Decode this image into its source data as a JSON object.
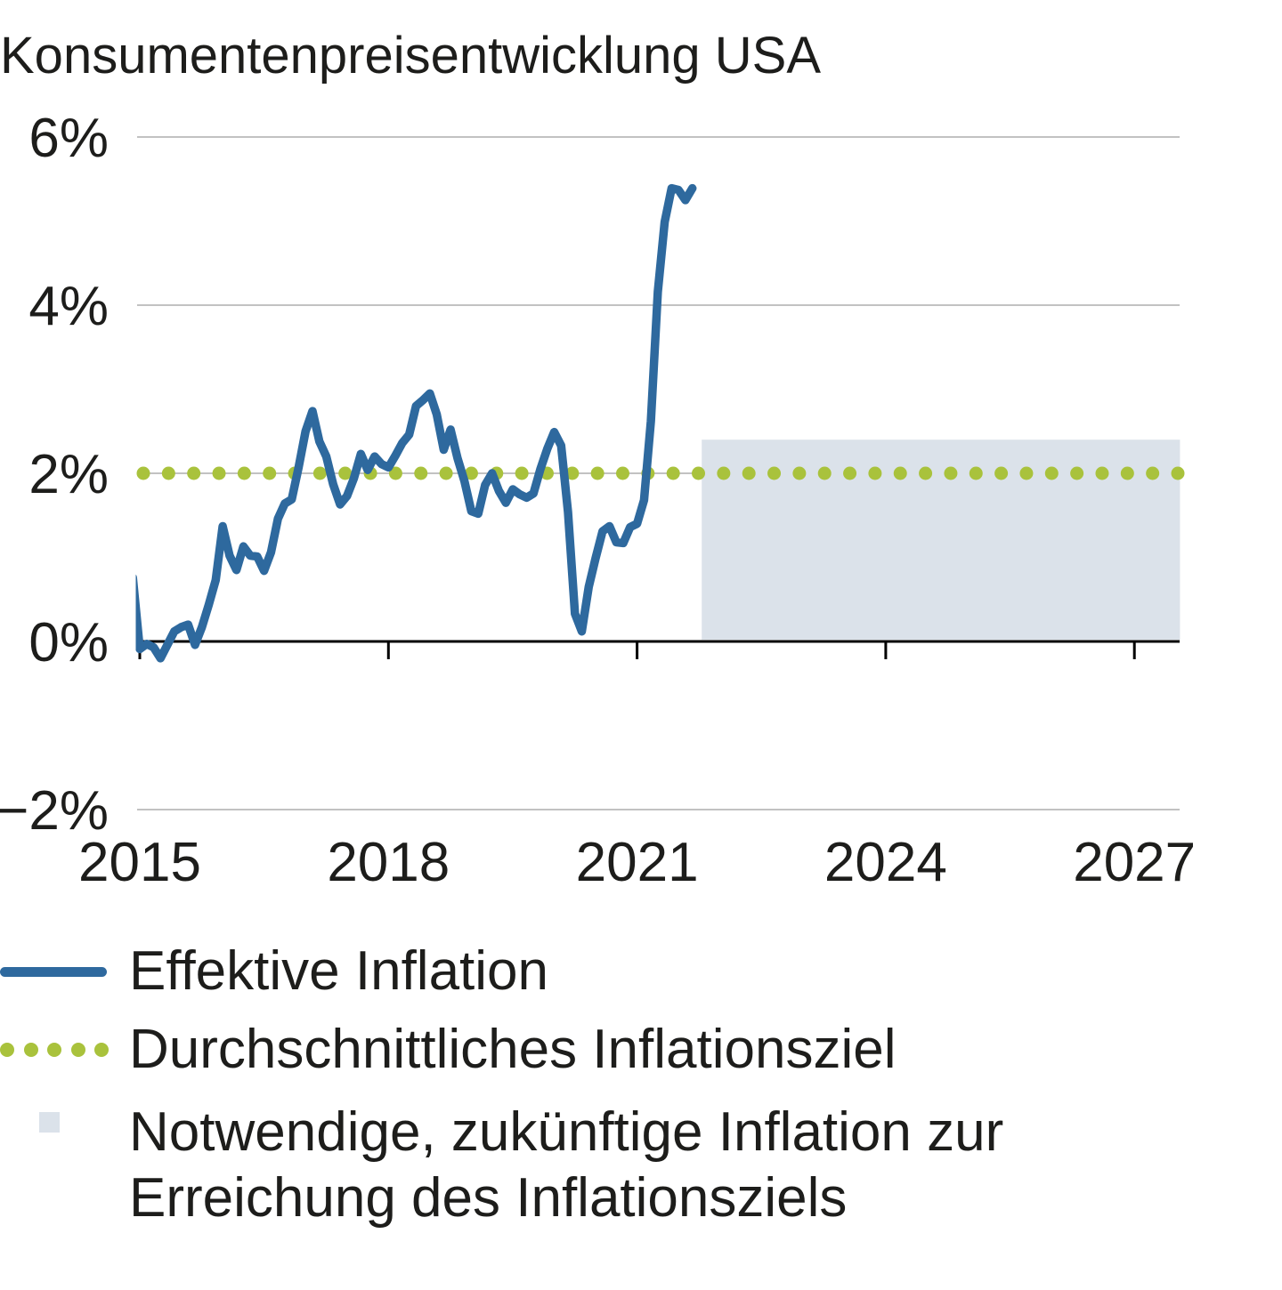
{
  "title": "Konsumentenpreisentwicklung USA",
  "colors": {
    "line_blue": "#2e699e",
    "target_green": "#a9c23c",
    "shade_bluegray": "#dbe2ea",
    "gridline": "#c2c2c2",
    "axis": "#000000",
    "text": "#1d1d1b"
  },
  "chart_data": {
    "type": "line",
    "title": "Konsumentenpreisentwicklung USA",
    "xlabel": "",
    "ylabel": "",
    "ylim": [
      -2,
      6
    ],
    "xlim_years": [
      2014.92,
      2027.55
    ],
    "grid": "horizontal",
    "yticks": [
      {
        "label": "6%",
        "value": 6
      },
      {
        "label": "4%",
        "value": 4
      },
      {
        "label": "2%",
        "value": 2
      },
      {
        "label": "0%",
        "value": 0
      },
      {
        "label": "−2%",
        "value": -2
      }
    ],
    "xticks": [
      {
        "label": "2015",
        "value": 2015
      },
      {
        "label": "2018",
        "value": 2018
      },
      {
        "label": "2021",
        "value": 2021
      },
      {
        "label": "2024",
        "value": 2024
      },
      {
        "label": "2027",
        "value": 2027
      }
    ],
    "series": [
      {
        "name": "Effektive Inflation",
        "type": "line",
        "color": "#2e699e",
        "start_month": "2014-12",
        "frequency": "monthly",
        "values_pct": [
          0.76,
          -0.09,
          -0.03,
          -0.07,
          -0.2,
          -0.04,
          0.12,
          0.17,
          0.2,
          -0.04,
          0.17,
          0.44,
          0.73,
          1.37,
          1.02,
          0.85,
          1.13,
          1.02,
          1.01,
          0.84,
          1.06,
          1.46,
          1.64,
          1.69,
          2.07,
          2.5,
          2.74,
          2.38,
          2.2,
          1.87,
          1.63,
          1.73,
          1.94,
          2.23,
          2.04,
          2.2,
          2.11,
          2.07,
          2.21,
          2.36,
          2.46,
          2.8,
          2.87,
          2.95,
          2.7,
          2.28,
          2.52,
          2.18,
          1.91,
          1.55,
          1.52,
          1.86,
          2.0,
          1.79,
          1.65,
          1.81,
          1.75,
          1.71,
          1.76,
          2.05,
          2.29,
          2.49,
          2.33,
          1.54,
          0.33,
          0.12,
          0.65,
          0.99,
          1.31,
          1.37,
          1.18,
          1.17,
          1.36,
          1.4,
          1.68,
          2.62,
          4.16,
          4.99,
          5.39,
          5.37,
          5.25,
          5.39
        ]
      },
      {
        "name": "Durchschnittliches Inflationsziel",
        "type": "dotted-line",
        "color": "#a9c23c",
        "value": 2
      },
      {
        "name": "Notwendige, zukünftige Inflation zur Erreichung des Inflationsziels",
        "type": "area",
        "color": "#dbe2ea",
        "x_start_year": 2021.78,
        "x_end_year": 2027.55,
        "y_from": 0,
        "y_to": 2.4
      }
    ]
  },
  "legend": {
    "items": [
      {
        "label": "Effektive Inflation",
        "swatch": "blue-line"
      },
      {
        "label": "Durchschnittliches Inflationsziel",
        "swatch": "green-dots"
      },
      {
        "label": "Notwendige, zukünftige Inflation zur Erreichung des Inflationsziels",
        "label_lines": [
          "Notwendige, zukünftige Inflation zur",
          "Erreichung des Inflationsziels"
        ],
        "swatch": "bluegray-square"
      }
    ]
  }
}
